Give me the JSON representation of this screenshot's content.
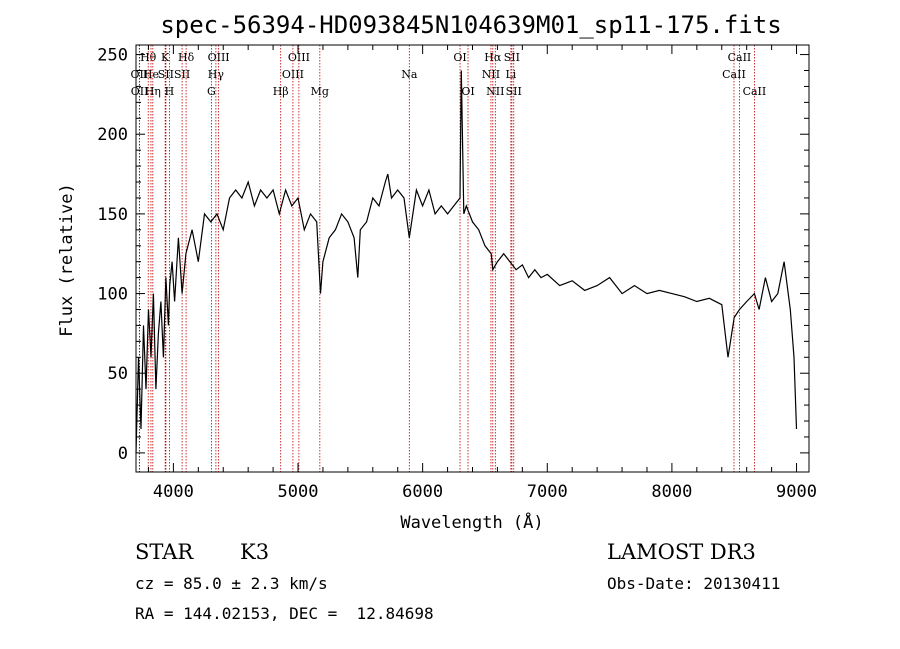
{
  "chart_data": {
    "type": "line",
    "title": "spec-56394-HD093845N104639M01_sp11-175.fits",
    "xlabel": "Wavelength (Å)",
    "ylabel": "Flux (relative)",
    "xlim": [
      3700,
      9100
    ],
    "ylim": [
      -12,
      256
    ],
    "xticks": [
      4000,
      5000,
      6000,
      7000,
      8000,
      9000
    ],
    "yticks": [
      0,
      50,
      100,
      150,
      200,
      250
    ],
    "grid": false,
    "series": [
      {
        "name": "spectrum",
        "x": [
          3700,
          3720,
          3740,
          3760,
          3780,
          3800,
          3820,
          3840,
          3860,
          3880,
          3900,
          3920,
          3940,
          3960,
          3970,
          3990,
          4010,
          4040,
          4070,
          4100,
          4150,
          4200,
          4250,
          4300,
          4350,
          4400,
          4450,
          4500,
          4550,
          4600,
          4650,
          4700,
          4750,
          4800,
          4850,
          4900,
          4950,
          5000,
          5050,
          5100,
          5150,
          5180,
          5200,
          5250,
          5300,
          5350,
          5400,
          5450,
          5480,
          5500,
          5550,
          5600,
          5650,
          5700,
          5720,
          5750,
          5800,
          5850,
          5893,
          5950,
          6000,
          6050,
          6100,
          6150,
          6200,
          6250,
          6300,
          6310,
          6330,
          6350,
          6400,
          6450,
          6500,
          6550,
          6563,
          6600,
          6650,
          6700,
          6750,
          6800,
          6850,
          6900,
          6950,
          7000,
          7100,
          7200,
          7300,
          7400,
          7500,
          7600,
          7700,
          7800,
          7900,
          8000,
          8100,
          8200,
          8300,
          8400,
          8450,
          8500,
          8542,
          8600,
          8662,
          8700,
          8750,
          8800,
          8850,
          8900,
          8950,
          8980,
          9000
        ],
        "values": [
          0,
          60,
          15,
          80,
          40,
          90,
          60,
          100,
          40,
          75,
          95,
          60,
          110,
          80,
          105,
          120,
          95,
          135,
          100,
          125,
          140,
          120,
          150,
          145,
          150,
          140,
          160,
          165,
          160,
          170,
          155,
          165,
          160,
          165,
          150,
          165,
          155,
          160,
          140,
          150,
          145,
          100,
          120,
          135,
          140,
          150,
          145,
          135,
          110,
          140,
          145,
          160,
          155,
          170,
          175,
          160,
          165,
          160,
          135,
          165,
          155,
          165,
          150,
          155,
          150,
          155,
          160,
          240,
          150,
          155,
          145,
          140,
          130,
          125,
          115,
          120,
          125,
          120,
          115,
          118,
          110,
          115,
          110,
          112,
          105,
          108,
          102,
          105,
          110,
          100,
          105,
          100,
          102,
          100,
          98,
          95,
          97,
          93,
          60,
          85,
          90,
          95,
          100,
          90,
          110,
          95,
          100,
          120,
          90,
          60,
          15
        ]
      }
    ],
    "lines": [
      {
        "label": "OII",
        "x": 3727,
        "row": 1
      },
      {
        "label": "OII",
        "x": 3729,
        "row": 2
      },
      {
        "label": "Hθ",
        "x": 3798,
        "row": 0
      },
      {
        "label": "He",
        "x": 3820,
        "row": 1
      },
      {
        "label": "Hη",
        "x": 3835,
        "row": 2
      },
      {
        "label": "K",
        "x": 3934,
        "row": 0
      },
      {
        "label": "SII",
        "x": 3940,
        "row": 1
      },
      {
        "label": "H",
        "x": 3968,
        "row": 2
      },
      {
        "label": "Hδ",
        "x": 4102,
        "row": 0
      },
      {
        "label": "SII",
        "x": 4070,
        "row": 1
      },
      {
        "label": "OIII",
        "x": 4363,
        "row": 0
      },
      {
        "label": "Hγ",
        "x": 4341,
        "row": 1
      },
      {
        "label": "G",
        "x": 4305,
        "row": 2
      },
      {
        "label": "Hβ",
        "x": 4861,
        "row": 2
      },
      {
        "label": "OIII",
        "x": 5007,
        "row": 0
      },
      {
        "label": "OIII",
        "x": 4959,
        "row": 1
      },
      {
        "label": "Mg",
        "x": 5175,
        "row": 2
      },
      {
        "label": "Na",
        "x": 5893,
        "row": 1
      },
      {
        "label": "OI",
        "x": 6300,
        "row": 0
      },
      {
        "label": "OI",
        "x": 6364,
        "row": 2
      },
      {
        "label": "Hα",
        "x": 6563,
        "row": 0
      },
      {
        "label": "NII",
        "x": 6548,
        "row": 1
      },
      {
        "label": "NII",
        "x": 6583,
        "row": 2
      },
      {
        "label": "SII",
        "x": 6716,
        "row": 0
      },
      {
        "label": "Li",
        "x": 6708,
        "row": 1
      },
      {
        "label": "SII",
        "x": 6731,
        "row": 2
      },
      {
        "label": "CaII",
        "x": 8542,
        "row": 0
      },
      {
        "label": "CaII",
        "x": 8498,
        "row": 1
      },
      {
        "label": "CaII",
        "x": 8662,
        "row": 2
      }
    ]
  },
  "info": {
    "object_class": "STAR",
    "subclass": "K3",
    "survey": "LAMOST DR3",
    "redshift": "cz = 85.0 ± 2.3 km/s",
    "obs_date": "Obs-Date: 20130411",
    "coords": "RA = 144.02153, DEC =  12.84698"
  }
}
